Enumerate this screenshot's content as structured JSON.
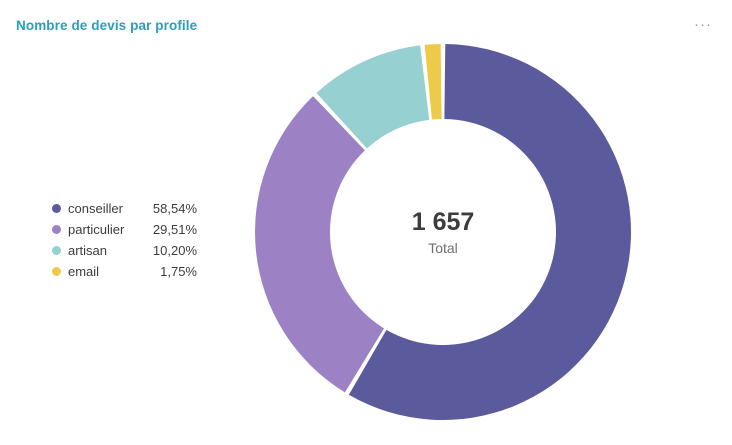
{
  "header": {
    "title": "Nombre de devis par profile",
    "more_options_icon": "···"
  },
  "chart_data": {
    "type": "pie",
    "subtype": "donut",
    "title": "Nombre de devis par profile",
    "total_value": "1 657",
    "total_label": "Total",
    "legend_position": "left",
    "series": [
      {
        "name": "conseiller",
        "value": 58.54,
        "display": "58,54%",
        "color": "#5b5a9c"
      },
      {
        "name": "particulier",
        "value": 29.51,
        "display": "29,51%",
        "color": "#9c82c5"
      },
      {
        "name": "artisan",
        "value": 10.2,
        "display": "10,20%",
        "color": "#96d0d1"
      },
      {
        "name": "email",
        "value": 1.75,
        "display": "1,75%",
        "color": "#eeca4b"
      }
    ]
  }
}
